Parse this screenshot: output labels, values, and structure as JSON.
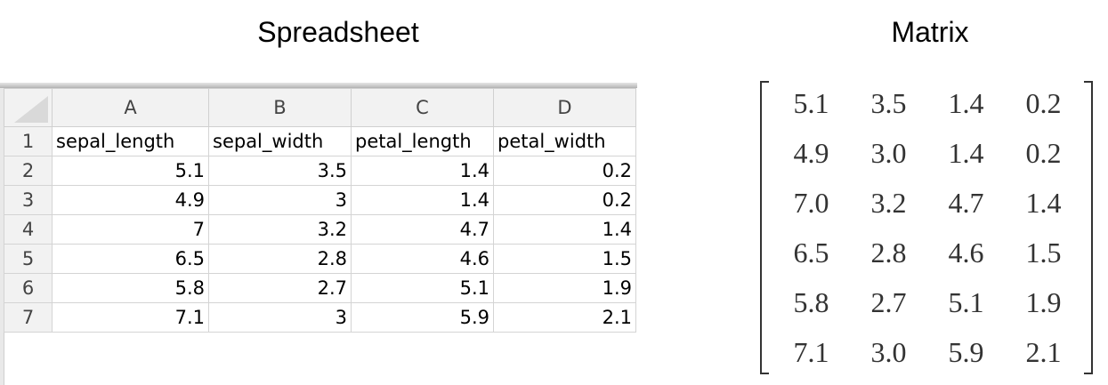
{
  "spreadsheet": {
    "heading": "Spreadsheet",
    "column_letters": [
      "A",
      "B",
      "C",
      "D"
    ],
    "row_numbers": [
      "1",
      "2",
      "3",
      "4",
      "5",
      "6",
      "7"
    ],
    "headers": [
      "sepal_length",
      "sepal_width",
      "petal_length",
      "petal_width"
    ],
    "rows": [
      [
        "5.1",
        "3.5",
        "1.4",
        "0.2"
      ],
      [
        "4.9",
        "3",
        "1.4",
        "0.2"
      ],
      [
        "7",
        "3.2",
        "4.7",
        "1.4"
      ],
      [
        "6.5",
        "2.8",
        "4.6",
        "1.5"
      ],
      [
        "5.8",
        "2.7",
        "5.1",
        "1.9"
      ],
      [
        "7.1",
        "3",
        "5.9",
        "2.1"
      ]
    ]
  },
  "matrix": {
    "heading": "Matrix",
    "rows": [
      [
        "5.1",
        "3.5",
        "1.4",
        "0.2"
      ],
      [
        "4.9",
        "3.0",
        "1.4",
        "0.2"
      ],
      [
        "7.0",
        "3.2",
        "4.7",
        "1.4"
      ],
      [
        "6.5",
        "2.8",
        "4.6",
        "1.5"
      ],
      [
        "5.8",
        "2.7",
        "5.1",
        "1.9"
      ],
      [
        "7.1",
        "3.0",
        "5.9",
        "2.1"
      ]
    ]
  }
}
